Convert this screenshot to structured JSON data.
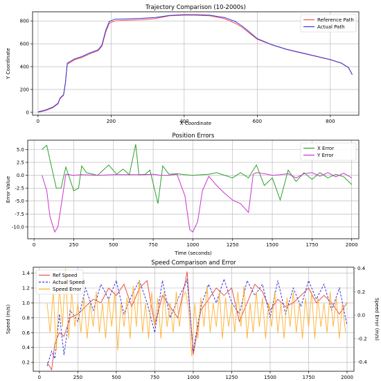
{
  "chart_data": [
    {
      "type": "line",
      "title": "Trajectory Comparison (10-2000s)",
      "xlabel": "X Coordinate",
      "ylabel": "Y Coordinate",
      "xlim": [
        -15,
        878
      ],
      "ylim": [
        -25,
        880
      ],
      "xticks": [
        0,
        200,
        400,
        600,
        800
      ],
      "yticks": [
        0,
        200,
        400,
        600,
        800
      ],
      "grid": true,
      "legend_position": "top-right",
      "series": [
        {
          "name": "Reference Path",
          "color": "#ff4d4d",
          "x": [
            0,
            20,
            40,
            55,
            60,
            70,
            75,
            80,
            100,
            120,
            140,
            165,
            175,
            185,
            195,
            210,
            240,
            280,
            320,
            360,
            400,
            430,
            470,
            510,
            540,
            560,
            580,
            600,
            640,
            680,
            720,
            760,
            800,
            830,
            850,
            860
          ],
          "y": [
            0,
            15,
            40,
            75,
            120,
            150,
            260,
            420,
            460,
            480,
            510,
            540,
            580,
            700,
            780,
            800,
            805,
            810,
            820,
            845,
            850,
            850,
            845,
            820,
            780,
            740,
            690,
            640,
            590,
            550,
            520,
            490,
            460,
            430,
            390,
            330
          ]
        },
        {
          "name": "Actual Path",
          "color": "#3333dd",
          "x": [
            0,
            20,
            40,
            55,
            60,
            70,
            75,
            80,
            100,
            120,
            140,
            165,
            175,
            185,
            195,
            210,
            240,
            280,
            320,
            360,
            400,
            430,
            470,
            510,
            540,
            560,
            580,
            600,
            640,
            680,
            720,
            760,
            800,
            830,
            850,
            860
          ],
          "y": [
            5,
            20,
            45,
            80,
            125,
            155,
            265,
            430,
            468,
            488,
            518,
            548,
            590,
            715,
            795,
            815,
            818,
            822,
            830,
            848,
            855,
            855,
            850,
            830,
            795,
            752,
            700,
            645,
            592,
            552,
            522,
            492,
            462,
            432,
            392,
            330
          ]
        }
      ]
    },
    {
      "type": "line",
      "title": "Position Errors",
      "xlabel": "Time (seconds)",
      "ylabel": "Error Value",
      "xlim": [
        -40,
        2045
      ],
      "ylim": [
        -12.3,
        6.8
      ],
      "xticks": [
        0,
        250,
        500,
        750,
        1000,
        1250,
        1500,
        1750,
        2000
      ],
      "yticks": [
        -10.0,
        -7.5,
        -5.0,
        -2.5,
        0.0,
        2.5,
        5.0
      ],
      "grid": true,
      "legend_position": "top-right",
      "series": [
        {
          "name": "X Error",
          "color": "#2ca02c",
          "t": [
            50,
            80,
            100,
            140,
            170,
            200,
            250,
            280,
            300,
            330,
            400,
            470,
            520,
            560,
            600,
            640,
            660,
            700,
            730,
            780,
            810,
            850,
            900,
            950,
            1000,
            1100,
            1150,
            1200,
            1250,
            1300,
            1350,
            1400,
            1450,
            1500,
            1550,
            1600,
            1650,
            1700,
            1750,
            1800,
            1850,
            1900,
            1950,
            2000
          ],
          "y": [
            5.0,
            5.8,
            3.0,
            -2.5,
            -2.5,
            1.6,
            -3.0,
            -2.5,
            1.8,
            0.5,
            0.0,
            2.0,
            0.2,
            1.2,
            0.1,
            6.0,
            0.1,
            0.2,
            1.0,
            -5.5,
            1.8,
            0.2,
            0.3,
            0.1,
            0.0,
            0.2,
            0.5,
            0.0,
            -0.5,
            0.5,
            -0.5,
            2.0,
            -2.0,
            -0.5,
            -4.8,
            1.0,
            -1.2,
            0.5,
            -0.8,
            0.5,
            -0.5,
            0.2,
            -0.3,
            -1.8
          ]
        },
        {
          "name": "Y Error",
          "color": "#cc33cc",
          "t": [
            50,
            80,
            100,
            130,
            150,
            180,
            200,
            250,
            300,
            400,
            500,
            600,
            650,
            700,
            750,
            800,
            850,
            900,
            950,
            980,
            1000,
            1030,
            1060,
            1100,
            1150,
            1200,
            1250,
            1300,
            1350,
            1380,
            1400,
            1450,
            1500,
            1550,
            1600,
            1650,
            1700,
            1750,
            1800,
            1850,
            1900,
            1950,
            2000
          ],
          "y": [
            0.0,
            -3.0,
            -8.0,
            -11.0,
            -10.0,
            -4.0,
            0.2,
            0.0,
            0.1,
            0.0,
            0.1,
            0.1,
            0.1,
            0.1,
            0.2,
            0.0,
            0.0,
            0.2,
            -4.0,
            -10.5,
            -11.0,
            -9.0,
            -3.0,
            -0.2,
            -2.0,
            -3.5,
            -4.8,
            -5.5,
            -7.2,
            0.2,
            0.5,
            0.3,
            0.0,
            0.1,
            0.3,
            -0.5,
            0.3,
            0.5,
            -0.2,
            0.5,
            -0.3,
            0.4,
            -0.5
          ]
        }
      ]
    },
    {
      "type": "line",
      "title": "Speed Comparison and Error",
      "xlabel": "",
      "ylabel": "Speed (m/s)",
      "y2label": "Speed Error (m/s)",
      "xlim": [
        -40,
        2045
      ],
      "ylim": [
        0.08,
        1.48
      ],
      "y2lim": [
        -0.48,
        0.41
      ],
      "xticks": [
        0,
        250,
        500,
        750,
        1000,
        1250,
        1500,
        1750,
        2000
      ],
      "yticks": [
        0.2,
        0.4,
        0.6,
        0.8,
        1.0,
        1.2,
        1.4
      ],
      "y2ticks": [
        -0.4,
        -0.2,
        0.0,
        0.2,
        0.4
      ],
      "grid": true,
      "legend_position": "top-left",
      "series": [
        {
          "name": "Ref Speed",
          "color": "#e8504a",
          "t": [
            50,
            80,
            100,
            130,
            160,
            200,
            250,
            300,
            350,
            400,
            450,
            500,
            550,
            600,
            650,
            700,
            750,
            800,
            850,
            900,
            950,
            960,
            1000,
            1050,
            1100,
            1150,
            1200,
            1250,
            1300,
            1350,
            1400,
            1450,
            1500,
            1550,
            1600,
            1650,
            1700,
            1750,
            1800,
            1850,
            1900,
            1950,
            2000
          ],
          "y": [
            0.2,
            0.1,
            0.45,
            0.6,
            0.55,
            0.8,
            0.85,
            0.95,
            1.05,
            1.0,
            1.2,
            1.1,
            1.25,
            0.95,
            1.2,
            1.3,
            0.7,
            1.1,
            0.95,
            0.8,
            1.3,
            1.42,
            0.3,
            0.9,
            1.05,
            1.2,
            1.1,
            1.2,
            0.75,
            1.0,
            1.25,
            1.15,
            0.9,
            1.05,
            0.95,
            1.0,
            1.1,
            1.2,
            1.0,
            1.1,
            1.0,
            0.85,
            1.0
          ]
        },
        {
          "name": "Actual Speed",
          "color": "#3333dd",
          "t": [
            50,
            80,
            100,
            130,
            160,
            200,
            250,
            300,
            350,
            400,
            450,
            500,
            550,
            600,
            650,
            700,
            750,
            800,
            850,
            900,
            950,
            960,
            1000,
            1050,
            1100,
            1150,
            1200,
            1250,
            1300,
            1350,
            1400,
            1450,
            1500,
            1550,
            1600,
            1650,
            1700,
            1750,
            1800,
            1850,
            1900,
            1950,
            2000
          ],
          "y": [
            0.15,
            0.35,
            0.25,
            0.85,
            0.3,
            0.9,
            0.75,
            1.2,
            0.9,
            1.25,
            1.05,
            1.3,
            0.85,
            1.1,
            1.3,
            1.0,
            0.6,
            1.3,
            0.8,
            1.05,
            1.25,
            1.32,
            0.35,
            0.95,
            1.25,
            1.0,
            1.32,
            1.0,
            0.85,
            1.3,
            1.1,
            1.25,
            0.8,
            1.3,
            0.85,
            1.2,
            0.95,
            1.3,
            1.05,
            1.25,
            0.9,
            1.2,
            0.7
          ]
        },
        {
          "name": "Speed Error",
          "color": "#ffaa22",
          "axis": "right",
          "t": [
            50,
            70,
            90,
            110,
            130,
            150,
            170,
            190,
            210,
            230,
            250,
            270,
            290,
            310,
            330,
            350,
            370,
            390,
            410,
            430,
            450,
            470,
            490,
            510,
            530,
            550,
            570,
            590,
            610,
            630,
            650,
            670,
            690,
            710,
            730,
            750,
            770,
            790,
            810,
            830,
            850,
            870,
            890,
            910,
            930,
            950,
            970,
            990,
            1010,
            1030,
            1050,
            1070,
            1090,
            1110,
            1130,
            1150,
            1170,
            1190,
            1210,
            1230,
            1250,
            1270,
            1290,
            1310,
            1330,
            1350,
            1370,
            1390,
            1410,
            1430,
            1450,
            1470,
            1490,
            1510,
            1530,
            1550,
            1570,
            1590,
            1610,
            1630,
            1650,
            1670,
            1690,
            1710,
            1730,
            1750,
            1770,
            1790,
            1810,
            1830,
            1850,
            1870,
            1890,
            1910,
            1930,
            1950,
            1970,
            1990
          ],
          "y": [
            0.1,
            -0.15,
            0.2,
            -0.3,
            0.25,
            -0.1,
            0.4,
            -0.2,
            0.2,
            -0.1,
            0.1,
            -0.15,
            0.15,
            -0.2,
            0.1,
            -0.1,
            0.2,
            -0.15,
            0.1,
            -0.2,
            0.15,
            -0.1,
            0.2,
            -0.3,
            0.1,
            -0.1,
            0.15,
            -0.2,
            0.25,
            -0.1,
            0.3,
            -0.15,
            0.1,
            -0.2,
            0.2,
            -0.1,
            0.15,
            -0.2,
            0.2,
            -0.1,
            0.1,
            -0.15,
            0.2,
            -0.1,
            0.15,
            0.2,
            0.05,
            -0.35,
            0.1,
            -0.2,
            0.15,
            -0.1,
            0.25,
            -0.15,
            0.1,
            -0.1,
            0.2,
            -0.2,
            0.15,
            -0.1,
            0.1,
            -0.15,
            0.2,
            -0.1,
            0.25,
            -0.2,
            0.1,
            -0.15,
            0.2,
            -0.1,
            0.15,
            -0.2,
            0.1,
            -0.1,
            0.2,
            -0.15,
            0.1,
            -0.2,
            0.15,
            -0.1,
            0.2,
            -0.15,
            0.1,
            -0.2,
            0.15,
            -0.1,
            0.2,
            -0.2,
            0.15,
            -0.1,
            0.1,
            -0.15,
            0.2,
            -0.1,
            0.15,
            -0.2,
            0.1,
            -0.15
          ]
        }
      ]
    }
  ]
}
